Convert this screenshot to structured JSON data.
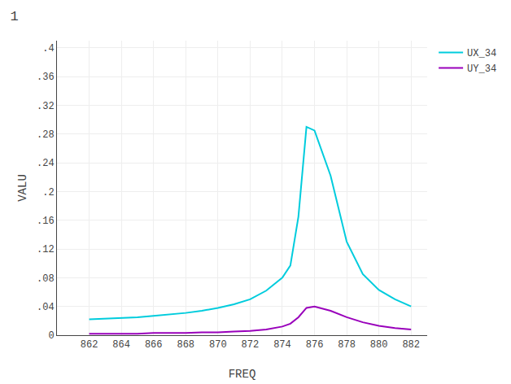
{
  "chart_data": {
    "type": "line",
    "title": "1",
    "xlabel": "FREQ",
    "ylabel": "VALU",
    "x": [
      862,
      863,
      864,
      865,
      866,
      867,
      868,
      869,
      870,
      871,
      872,
      873,
      874,
      874.5,
      875.0,
      875.5,
      876.0,
      877.0,
      878.0,
      879.0,
      880.0,
      881.0,
      882.0
    ],
    "series": [
      {
        "name": "UX_34",
        "color": "#00ccdd",
        "values": [
          0.022,
          0.023,
          0.024,
          0.025,
          0.027,
          0.029,
          0.031,
          0.034,
          0.038,
          0.043,
          0.05,
          0.062,
          0.08,
          0.097,
          0.165,
          0.29,
          0.285,
          0.222,
          0.13,
          0.085,
          0.063,
          0.05,
          0.04
        ]
      },
      {
        "name": "UY_34",
        "color": "#9900bb",
        "values": [
          0.002,
          0.002,
          0.002,
          0.002,
          0.003,
          0.003,
          0.003,
          0.004,
          0.004,
          0.005,
          0.006,
          0.008,
          0.012,
          0.016,
          0.025,
          0.038,
          0.04,
          0.034,
          0.025,
          0.018,
          0.013,
          0.01,
          0.008
        ]
      }
    ],
    "xlim": [
      860,
      883
    ],
    "ylim": [
      0,
      0.41
    ],
    "xticks": [
      862,
      864,
      866,
      868,
      870,
      872,
      874,
      876,
      878,
      880,
      882
    ],
    "yticks": [
      0,
      {
        "value": 0.04,
        "label": ".04"
      },
      {
        "value": 0.08,
        "label": ".08"
      },
      {
        "value": 0.12,
        "label": ".12"
      },
      {
        "value": 0.16,
        "label": ".16"
      },
      {
        "value": 0.2,
        "label": ".2"
      },
      {
        "value": 0.24,
        "label": ".24"
      },
      {
        "value": 0.28,
        "label": ".28"
      },
      {
        "value": 0.32,
        "label": ".32"
      },
      {
        "value": 0.36,
        "label": ".36"
      },
      {
        "value": 0.4,
        "label": ".4"
      }
    ],
    "grid": true
  }
}
